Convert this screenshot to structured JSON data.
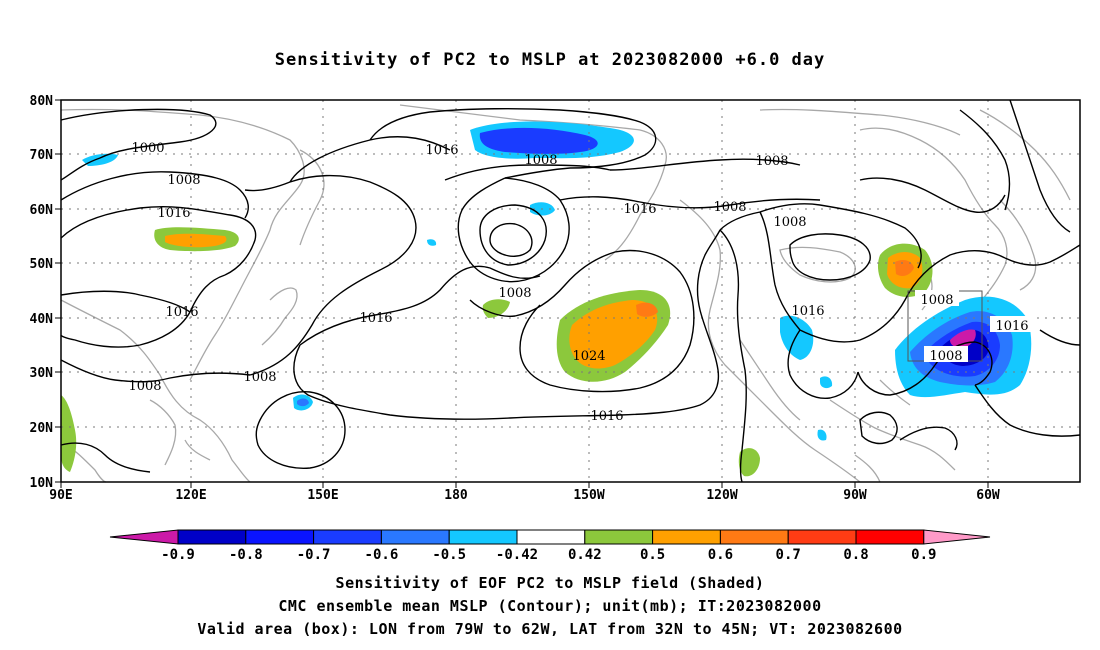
{
  "title": "Sensitivity of PC2 to MSLP at 2023082000 +6.0 day",
  "lat_labels": [
    "80N",
    "70N",
    "60N",
    "50N",
    "40N",
    "30N",
    "20N",
    "10N"
  ],
  "lon_labels": [
    "90E",
    "120E",
    "150E",
    "180",
    "150W",
    "120W",
    "90W",
    "60W"
  ],
  "contour_labels": [
    {
      "text": "1000"
    },
    {
      "text": "1008"
    },
    {
      "text": "1016"
    },
    {
      "text": "1016"
    },
    {
      "text": "1008"
    },
    {
      "text": "1008"
    },
    {
      "text": "1008"
    },
    {
      "text": "1016"
    },
    {
      "text": "1008"
    },
    {
      "text": "1016"
    },
    {
      "text": "1008"
    },
    {
      "text": "1016"
    },
    {
      "text": "1024"
    },
    {
      "text": "1016"
    },
    {
      "text": "1008"
    },
    {
      "text": "1008"
    },
    {
      "text": "1016"
    },
    {
      "text": "1008"
    },
    {
      "text": "1016"
    },
    {
      "text": "1008"
    }
  ],
  "colorbar": {
    "labels": [
      "-0.9",
      "-0.8",
      "-0.7",
      "-0.6",
      "-0.5",
      "-0.42",
      "0.42",
      "0.5",
      "0.6",
      "0.7",
      "0.8",
      "0.9"
    ],
    "colors": [
      "#cc1aa8",
      "#0000c8",
      "#0a14ff",
      "#1a3cff",
      "#2a78ff",
      "#14c8ff",
      "#ffffff",
      "#8cc83c",
      "#ffa000",
      "#ff7a14",
      "#ff3c14",
      "#ff0000",
      "#ff9ac8"
    ]
  },
  "captions": [
    "Sensitivity of EOF PC2 to MSLP field (Shaded)",
    "CMC ensemble mean MSLP (Contour); unit(mb); IT:2023082000",
    "Valid area (box): LON from 79W to 62W, LAT from 32N to 45N; VT: 2023082600"
  ]
}
